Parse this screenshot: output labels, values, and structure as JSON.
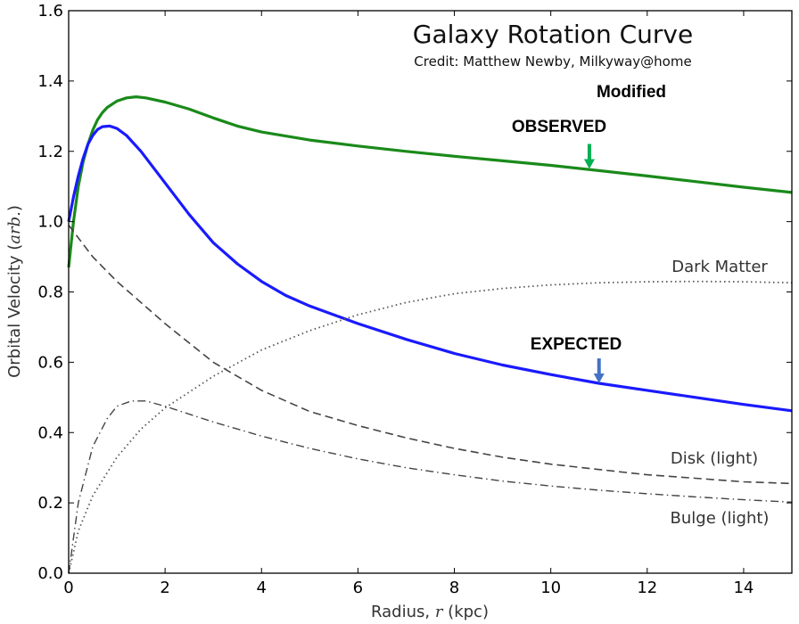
{
  "chart_data": {
    "type": "line",
    "title": "Galaxy Rotation Curve",
    "subtitle": "Credit:  Matthew Newby, Milkyway@home",
    "xlabel_prefix": "Radius, ",
    "xlabel_var": "r",
    "xlabel_suffix": " (kpc)",
    "ylabel_prefix": "Orbital Velocity (",
    "ylabel_var": "arb.",
    "ylabel_suffix": ")",
    "xlim": [
      0,
      15
    ],
    "ylim": [
      0,
      1.6
    ],
    "xticks": [
      "0",
      "2",
      "4",
      "6",
      "8",
      "10",
      "12",
      "14"
    ],
    "yticks": [
      "0.0",
      "0.2",
      "0.4",
      "0.6",
      "0.8",
      "1.0",
      "1.2",
      "1.4",
      "1.6"
    ],
    "grid": false,
    "series": [
      {
        "name": "OBSERVED",
        "color": "#1a8a1a",
        "style": "solid",
        "points": [
          [
            0,
            0.87
          ],
          [
            0.1,
            1.0
          ],
          [
            0.2,
            1.1
          ],
          [
            0.3,
            1.17
          ],
          [
            0.4,
            1.22
          ],
          [
            0.5,
            1.26
          ],
          [
            0.6,
            1.29
          ],
          [
            0.7,
            1.31
          ],
          [
            0.8,
            1.325
          ],
          [
            1.0,
            1.343
          ],
          [
            1.2,
            1.352
          ],
          [
            1.4,
            1.355
          ],
          [
            1.6,
            1.352
          ],
          [
            2.0,
            1.34
          ],
          [
            2.5,
            1.32
          ],
          [
            3,
            1.295
          ],
          [
            3.5,
            1.272
          ],
          [
            4,
            1.255
          ],
          [
            5,
            1.232
          ],
          [
            6,
            1.215
          ],
          [
            7,
            1.2
          ],
          [
            8,
            1.186
          ],
          [
            9,
            1.173
          ],
          [
            10,
            1.16
          ],
          [
            11,
            1.145
          ],
          [
            12,
            1.13
          ],
          [
            13,
            1.114
          ],
          [
            14,
            1.098
          ],
          [
            15,
            1.083
          ]
        ]
      },
      {
        "name": "EXPECTED",
        "color": "#1a1aff",
        "style": "solid",
        "points": [
          [
            0,
            1.0
          ],
          [
            0.1,
            1.07
          ],
          [
            0.2,
            1.13
          ],
          [
            0.3,
            1.18
          ],
          [
            0.4,
            1.22
          ],
          [
            0.5,
            1.245
          ],
          [
            0.6,
            1.262
          ],
          [
            0.7,
            1.27
          ],
          [
            0.85,
            1.272
          ],
          [
            1.0,
            1.265
          ],
          [
            1.2,
            1.245
          ],
          [
            1.5,
            1.2
          ],
          [
            2,
            1.11
          ],
          [
            2.5,
            1.02
          ],
          [
            3,
            0.94
          ],
          [
            3.5,
            0.88
          ],
          [
            4,
            0.83
          ],
          [
            4.5,
            0.79
          ],
          [
            5,
            0.76
          ],
          [
            6,
            0.71
          ],
          [
            7,
            0.665
          ],
          [
            8,
            0.625
          ],
          [
            9,
            0.592
          ],
          [
            10,
            0.565
          ],
          [
            11,
            0.54
          ],
          [
            12,
            0.52
          ],
          [
            13,
            0.5
          ],
          [
            14,
            0.48
          ],
          [
            15,
            0.462
          ]
        ]
      },
      {
        "name": "Dark Matter",
        "color": "#555555",
        "style": "dotted",
        "points": [
          [
            0,
            0.0
          ],
          [
            0.2,
            0.12
          ],
          [
            0.5,
            0.22
          ],
          [
            1,
            0.33
          ],
          [
            1.5,
            0.41
          ],
          [
            2,
            0.47
          ],
          [
            3,
            0.56
          ],
          [
            4,
            0.635
          ],
          [
            5,
            0.69
          ],
          [
            6,
            0.735
          ],
          [
            7,
            0.77
          ],
          [
            8,
            0.795
          ],
          [
            9,
            0.81
          ],
          [
            10,
            0.82
          ],
          [
            11,
            0.826
          ],
          [
            12,
            0.829
          ],
          [
            13,
            0.83
          ],
          [
            14,
            0.829
          ],
          [
            15,
            0.826
          ]
        ]
      },
      {
        "name": "Disk (light)",
        "color": "#444444",
        "style": "dashed",
        "points": [
          [
            0,
            0.99
          ],
          [
            0.5,
            0.9
          ],
          [
            1,
            0.83
          ],
          [
            2,
            0.71
          ],
          [
            3,
            0.6
          ],
          [
            4,
            0.52
          ],
          [
            5,
            0.46
          ],
          [
            6,
            0.42
          ],
          [
            7,
            0.385
          ],
          [
            8,
            0.355
          ],
          [
            9,
            0.33
          ],
          [
            10,
            0.31
          ],
          [
            11,
            0.295
          ],
          [
            12,
            0.28
          ],
          [
            13,
            0.27
          ],
          [
            14,
            0.26
          ],
          [
            15,
            0.255
          ]
        ]
      },
      {
        "name": "Bulge (light)",
        "color": "#444444",
        "style": "dashdot",
        "points": [
          [
            0,
            0.0
          ],
          [
            0.2,
            0.2
          ],
          [
            0.5,
            0.36
          ],
          [
            0.8,
            0.44
          ],
          [
            1.0,
            0.475
          ],
          [
            1.3,
            0.49
          ],
          [
            1.6,
            0.49
          ],
          [
            2,
            0.475
          ],
          [
            3,
            0.43
          ],
          [
            4,
            0.39
          ],
          [
            5,
            0.355
          ],
          [
            6,
            0.325
          ],
          [
            7,
            0.3
          ],
          [
            8,
            0.28
          ],
          [
            9,
            0.262
          ],
          [
            10,
            0.248
          ],
          [
            11,
            0.236
          ],
          [
            12,
            0.226
          ],
          [
            13,
            0.217
          ],
          [
            14,
            0.209
          ],
          [
            15,
            0.202
          ]
        ]
      }
    ],
    "annotations": {
      "modified": "Modified",
      "observed": "OBSERVED",
      "expected": "EXPECTED",
      "dark_matter": "Dark Matter",
      "disk": "Disk (light)",
      "bulge": "Bulge (light)"
    },
    "arrow_colors": {
      "observed": "#00b050",
      "expected": "#4472c4"
    },
    "arrow_targets": {
      "observed": [
        10.8,
        1.15
      ],
      "expected": [
        11.0,
        0.54
      ]
    }
  }
}
